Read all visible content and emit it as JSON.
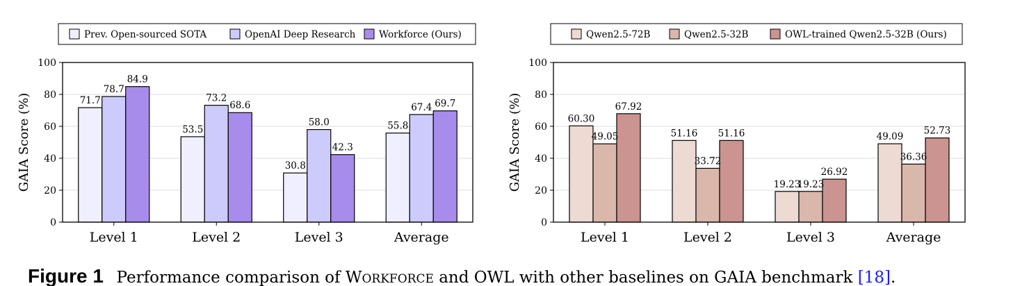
{
  "charts": [
    {
      "type": "bar",
      "ylabel": "GAIA Score (%)",
      "ylim": [
        0,
        100
      ],
      "yticks": [
        "0",
        "20",
        "40",
        "60",
        "80",
        "100"
      ],
      "grid": true,
      "legend_position": "top",
      "categories": [
        "Level 1",
        "Level 2",
        "Level 3",
        "Average"
      ],
      "series": [
        {
          "name": "Prev. Open-sourced SOTA",
          "color": "#f0efff",
          "values": [
            71.7,
            53.5,
            30.8,
            55.8
          ],
          "labels": [
            "71.7",
            "53.5",
            "30.8",
            "55.8"
          ]
        },
        {
          "name": "OpenAI Deep Research",
          "color": "#cccbfc",
          "values": [
            78.7,
            73.2,
            58.0,
            67.4
          ],
          "labels": [
            "78.7",
            "73.2",
            "58.0",
            "67.4"
          ]
        },
        {
          "name": "Workforce (Ours)",
          "color": "#a78cec",
          "values": [
            84.9,
            68.6,
            42.3,
            69.7
          ],
          "labels": [
            "84.9",
            "68.6",
            "42.3",
            "69.7"
          ]
        }
      ]
    },
    {
      "type": "bar",
      "ylabel": "GAIA Score (%)",
      "ylim": [
        0,
        100
      ],
      "yticks": [
        "0",
        "20",
        "40",
        "60",
        "80",
        "100"
      ],
      "grid": true,
      "legend_position": "top",
      "categories": [
        "Level 1",
        "Level 2",
        "Level 3",
        "Average"
      ],
      "series": [
        {
          "name": "Qwen2.5-72B",
          "color": "#eddbd3",
          "values": [
            60.3,
            51.16,
            19.23,
            49.09
          ],
          "labels": [
            "60.30",
            "51.16",
            "19.23",
            "49.09"
          ]
        },
        {
          "name": "Qwen2.5-32B",
          "color": "#d9b7ab",
          "values": [
            49.05,
            33.72,
            19.23,
            36.36
          ],
          "labels": [
            "49.05",
            "33.72",
            "19.23",
            "36.36"
          ]
        },
        {
          "name": "OWL-trained Qwen2.5-32B (Ours)",
          "color": "#cb9490",
          "values": [
            67.92,
            51.16,
            26.92,
            52.73
          ],
          "labels": [
            "67.92",
            "51.16",
            "26.92",
            "52.73"
          ]
        }
      ]
    }
  ],
  "caption": {
    "label": "Figure 1",
    "text_before_w": "Performance comparison of W",
    "workforce_smallcaps": "ORKFORCE",
    "text_middle": " and OWL with other baselines on GAIA benchmark ",
    "citation": "[18]",
    "text_end": "."
  }
}
